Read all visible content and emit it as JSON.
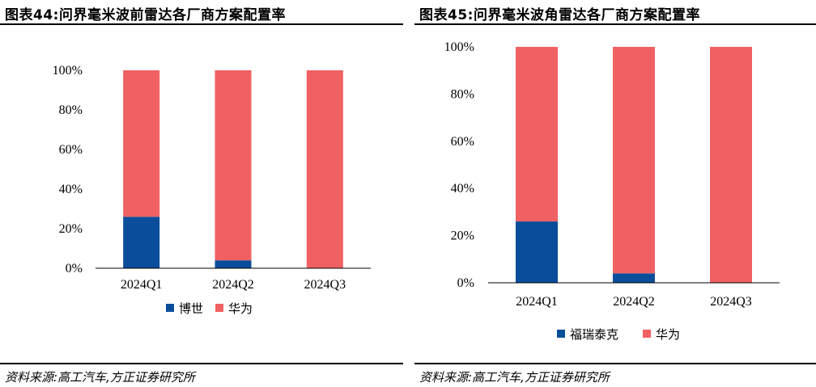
{
  "colors": {
    "blue": "#0a4d9b",
    "red": "#f06163",
    "axis": "#000000"
  },
  "chart_data": [
    {
      "type": "bar",
      "stacked": true,
      "title": "图表44:问界毫米波前雷达各厂商方案配置率",
      "source": "资料来源:高工汽车,方正证券研究所",
      "categories": [
        "2024Q1",
        "2024Q2",
        "2024Q3"
      ],
      "series": [
        {
          "name": "博世",
          "color": "#0a4d9b",
          "values": [
            26,
            4,
            0
          ]
        },
        {
          "name": "华为",
          "color": "#f06163",
          "values": [
            74,
            96,
            100
          ]
        }
      ],
      "yticks": [
        "0%",
        "20%",
        "40%",
        "60%",
        "80%",
        "100%"
      ],
      "ylim": [
        0,
        100
      ],
      "legend_position": "bottom"
    },
    {
      "type": "bar",
      "stacked": true,
      "title": "图表45:问界毫米波角雷达各厂商方案配置率",
      "source": "资料来源:高工汽车,方正证券研究所",
      "categories": [
        "2024Q1",
        "2024Q2",
        "2024Q3"
      ],
      "series": [
        {
          "name": "福瑞泰克",
          "color": "#0a4d9b",
          "values": [
            26,
            4,
            0
          ]
        },
        {
          "name": "华为",
          "color": "#f06163",
          "values": [
            74,
            96,
            100
          ]
        }
      ],
      "yticks": [
        "0%",
        "20%",
        "40%",
        "60%",
        "80%",
        "100%"
      ],
      "ylim": [
        0,
        100
      ],
      "legend_position": "bottom"
    }
  ]
}
